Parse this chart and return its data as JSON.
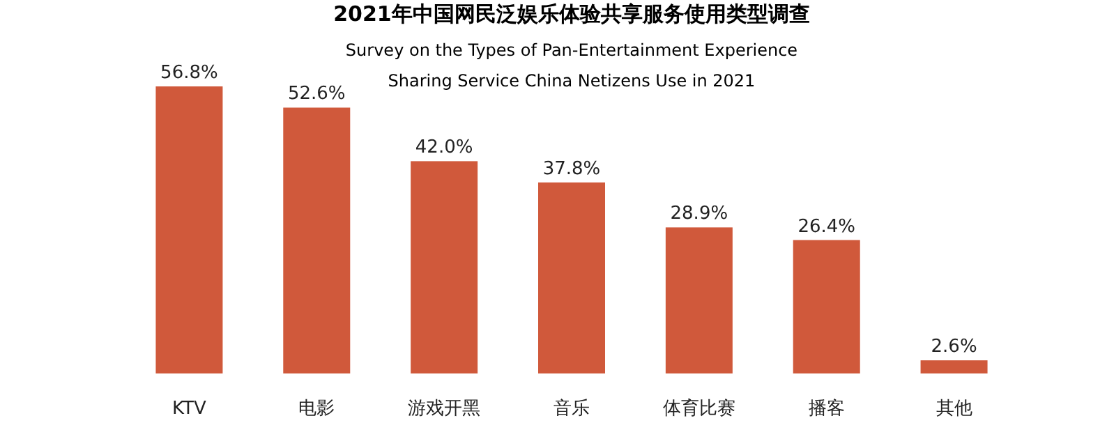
{
  "chart_data": {
    "type": "bar",
    "title": "2021年中国网民泛娱乐体验共享服务使用类型调查",
    "subtitle": "Survey on the Types of Pan-Entertainment Experience Sharing Service China Netizens Use in 2021",
    "categories": [
      "KTV",
      "电影",
      "游戏开黑",
      "音乐",
      "体育比赛",
      "播客",
      "其他"
    ],
    "values": [
      56.8,
      52.6,
      42.0,
      37.8,
      28.9,
      26.4,
      2.6
    ],
    "value_labels": [
      "56.8%",
      "52.6%",
      "42.0%",
      "37.8%",
      "28.9%",
      "26.4%",
      "2.6%"
    ],
    "color": "#d0593b"
  }
}
